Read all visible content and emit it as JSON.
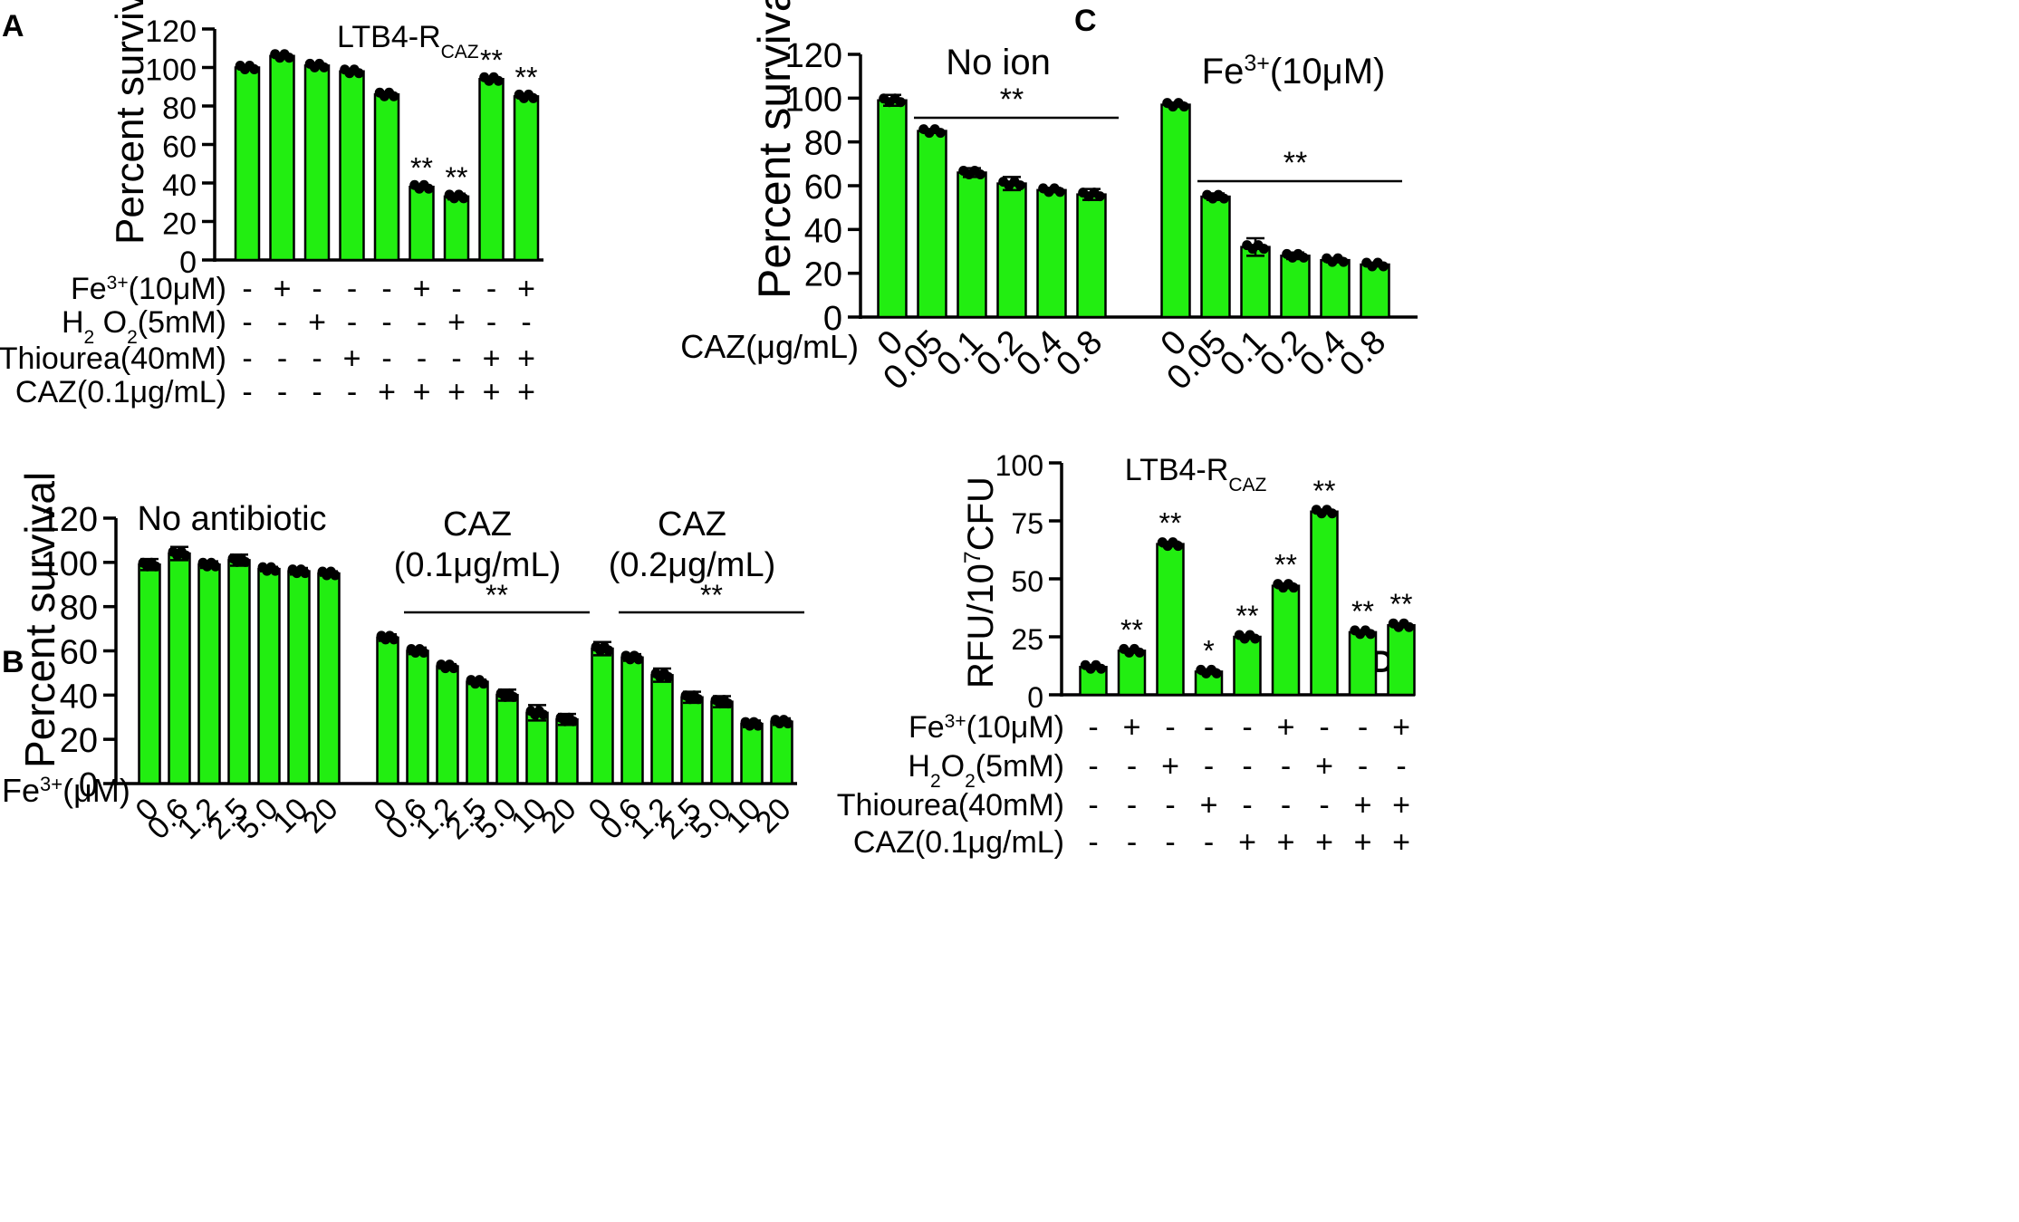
{
  "colors": {
    "bar": "#22ee11",
    "ink": "#000000",
    "background": "#ffffff"
  },
  "chart_data": [
    {
      "panel": "A",
      "type": "bar",
      "title": "LTB4-R",
      "title_sub": "CAZ",
      "ylabel": "Percent survival",
      "ylim": [
        0,
        120
      ],
      "yticks": [
        "0",
        "20",
        "40",
        "60",
        "80",
        "100",
        "120"
      ],
      "values": [
        100,
        106,
        101,
        98,
        86,
        38,
        33,
        94,
        85
      ],
      "errors": [
        1,
        1,
        0.5,
        0.5,
        0.5,
        0.5,
        1.5,
        0.5,
        1
      ],
      "sig": [
        "",
        "",
        "",
        "",
        "",
        "**",
        "**",
        "**",
        "**"
      ],
      "conditions": [
        {
          "label": "Fe",
          "sup": "3+",
          "rest": "(10μM)",
          "signs": [
            "-",
            "+",
            "-",
            "-",
            "-",
            "+",
            "-",
            "-",
            "+"
          ]
        },
        {
          "label": "H",
          "sub": "2",
          "rest": " O",
          "sub2": "2",
          "rest2": "(5mM)",
          "signs": [
            "-",
            "-",
            "+",
            "-",
            "-",
            "-",
            "+",
            "-",
            "-"
          ]
        },
        {
          "label": "Thiourea(40mM)",
          "signs": [
            "-",
            "-",
            "-",
            "+",
            "-",
            "-",
            "-",
            "+",
            "+"
          ]
        },
        {
          "label": "CAZ(0.1μg/mL)",
          "signs": [
            "-",
            "-",
            "-",
            "-",
            "+",
            "+",
            "+",
            "+",
            "+"
          ]
        }
      ]
    },
    {
      "panel": "B",
      "type": "bar",
      "ylabel": "Percent survival",
      "ylim": [
        0,
        120
      ],
      "yticks": [
        "0",
        "20",
        "40",
        "60",
        "80",
        "100",
        "120"
      ],
      "xlabel": "Fe",
      "xlabel_sup": "3+",
      "xlabel_rest": "(μM)",
      "categories": [
        "0",
        "0.6",
        "1.2",
        "2.5",
        "5.0",
        "10",
        "20"
      ],
      "groups": [
        {
          "name_line1": "No antibiotic",
          "name_line2": "",
          "values": [
            99,
            104,
            99,
            101,
            97,
            96,
            95
          ],
          "errors": [
            2.5,
            3,
            1.5,
            2.5,
            1,
            1.5,
            1
          ],
          "sig": ""
        },
        {
          "name_line1": "CAZ",
          "name_line2": "(0.1μg/mL)",
          "values": [
            66,
            60,
            53,
            46,
            40,
            32,
            29
          ],
          "errors": [
            1.5,
            1.5,
            1,
            1,
            2.5,
            3.5,
            2.5
          ],
          "sig": "**"
        },
        {
          "name_line1": "CAZ",
          "name_line2": "(0.2μg/mL)",
          "values": [
            61,
            57,
            49,
            39,
            37,
            27,
            28
          ],
          "errors": [
            3,
            1.5,
            3,
            2.5,
            2.5,
            1.5,
            1.5
          ],
          "sig": "**"
        }
      ]
    },
    {
      "panel": "C",
      "type": "bar",
      "ylabel": "Percent survival",
      "ylim": [
        0,
        120
      ],
      "yticks": [
        "0",
        "20",
        "40",
        "60",
        "80",
        "100",
        "120"
      ],
      "xlabel": "CAZ(μg/mL)",
      "categories": [
        "0",
        "0.05",
        "0.1",
        "0.2",
        "0.4",
        "0.8"
      ],
      "groups": [
        {
          "name": "No  ion",
          "values": [
            99,
            85,
            66,
            61,
            58,
            56
          ],
          "errors": [
            2.5,
            0.5,
            2,
            3,
            1,
            2.5
          ],
          "sig": "**"
        },
        {
          "name_base": "Fe",
          "name_sup": "3+",
          "name_rest": "(10μM)",
          "values": [
            97,
            55,
            32,
            28,
            26,
            24
          ],
          "errors": [
            1,
            1.5,
            4,
            1.5,
            1,
            0.5
          ],
          "sig": "**"
        }
      ]
    },
    {
      "panel": "D",
      "type": "bar",
      "title": "LTB4-R",
      "title_sub": "CAZ",
      "ylabel": "RFU/10",
      "ylabel_sup": "7",
      "ylabel_rest": "CFU",
      "ylim": [
        0,
        100
      ],
      "yticks": [
        "0",
        "25",
        "50",
        "75",
        "100"
      ],
      "values": [
        12,
        19,
        65,
        10,
        25,
        47,
        79,
        27,
        30
      ],
      "errors": [
        0.3,
        0.5,
        1,
        1,
        0.3,
        1,
        0.3,
        0.8,
        0.3
      ],
      "sig": [
        "",
        "**",
        "**",
        "*",
        "**",
        "**",
        "**",
        "**",
        "**"
      ],
      "conditions": [
        {
          "label": "Fe",
          "sup": "3+",
          "rest": "(10μM)",
          "signs": [
            "-",
            "+",
            "-",
            "-",
            "-",
            "+",
            "-",
            "-",
            "+"
          ]
        },
        {
          "label": "H",
          "sub": "2",
          "rest": "O",
          "sub2": "2",
          "rest2": "(5mM)",
          "signs": [
            "-",
            "-",
            "+",
            "-",
            "-",
            "-",
            "+",
            "-",
            "-"
          ]
        },
        {
          "label": "Thiourea(40mM)",
          "signs": [
            "-",
            "-",
            "-",
            "+",
            "-",
            "-",
            "-",
            "+",
            "+"
          ]
        },
        {
          "label": "CAZ(0.1μg/mL)",
          "signs": [
            "-",
            "-",
            "-",
            "-",
            "+",
            "+",
            "+",
            "+",
            "+"
          ]
        }
      ]
    }
  ]
}
